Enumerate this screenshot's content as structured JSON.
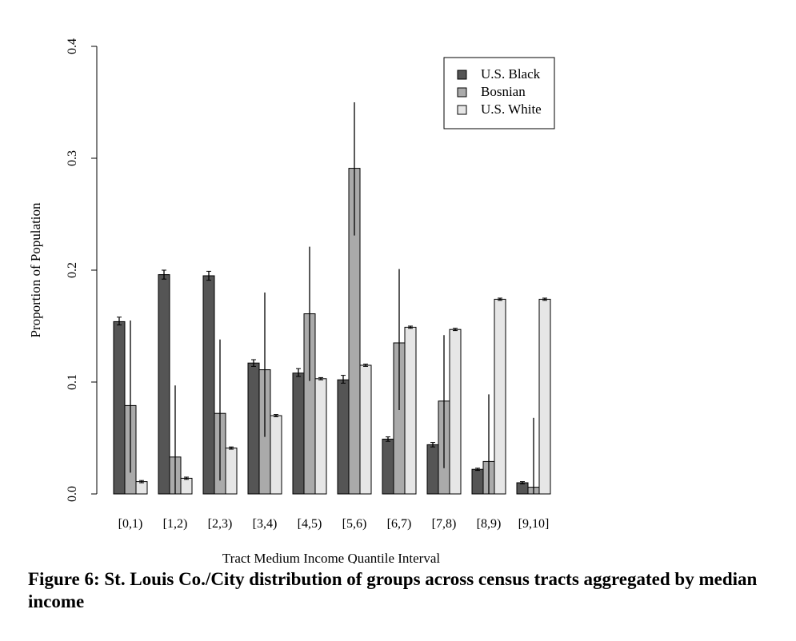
{
  "chart_data": {
    "type": "bar",
    "xlabel": "Tract Medium Income Quantile Interval",
    "ylabel": "Proportion of Population",
    "ylim": [
      0,
      0.4
    ],
    "yticks": [
      "0.0",
      "0.1",
      "0.2",
      "0.3",
      "0.4"
    ],
    "grid": false,
    "legend_position": "top-right",
    "categories": [
      "[0,1)",
      "[1,2)",
      "[2,3)",
      "[3,4)",
      "[4,5)",
      "[5,6)",
      "[6,7)",
      "[7,8)",
      "[8,9)",
      "[9,10]"
    ],
    "series": [
      {
        "name": "U.S. Black",
        "color": "#555555",
        "values": [
          0.154,
          0.196,
          0.195,
          0.117,
          0.108,
          0.102,
          0.049,
          0.044,
          0.022,
          0.01
        ],
        "error_low": [
          0.151,
          0.192,
          0.191,
          0.114,
          0.105,
          0.099,
          0.047,
          0.042,
          0.021,
          0.009
        ],
        "error_high": [
          0.158,
          0.2,
          0.199,
          0.12,
          0.112,
          0.106,
          0.051,
          0.046,
          0.023,
          0.011
        ]
      },
      {
        "name": "Bosnian",
        "color": "#aaaaaa",
        "values": [
          0.079,
          0.033,
          0.072,
          0.111,
          0.161,
          0.291,
          0.135,
          0.083,
          0.029,
          0.006
        ],
        "error_low": [
          0.019,
          0.0,
          0.012,
          0.051,
          0.101,
          0.231,
          0.075,
          0.023,
          0.0,
          0.0
        ],
        "error_high": [
          0.155,
          0.097,
          0.138,
          0.18,
          0.221,
          0.35,
          0.201,
          0.142,
          0.089,
          0.068
        ]
      },
      {
        "name": "U.S. White",
        "color": "#e6e6e6",
        "values": [
          0.011,
          0.014,
          0.041,
          0.07,
          0.103,
          0.115,
          0.149,
          0.147,
          0.174,
          0.174
        ],
        "error_low": [
          0.01,
          0.013,
          0.04,
          0.069,
          0.102,
          0.114,
          0.148,
          0.146,
          0.173,
          0.173
        ],
        "error_high": [
          0.012,
          0.015,
          0.042,
          0.071,
          0.104,
          0.116,
          0.15,
          0.148,
          0.175,
          0.175
        ]
      }
    ]
  },
  "caption": "Figure 6: St. Louis Co./City distribution of groups across census tracts aggregated by median income"
}
